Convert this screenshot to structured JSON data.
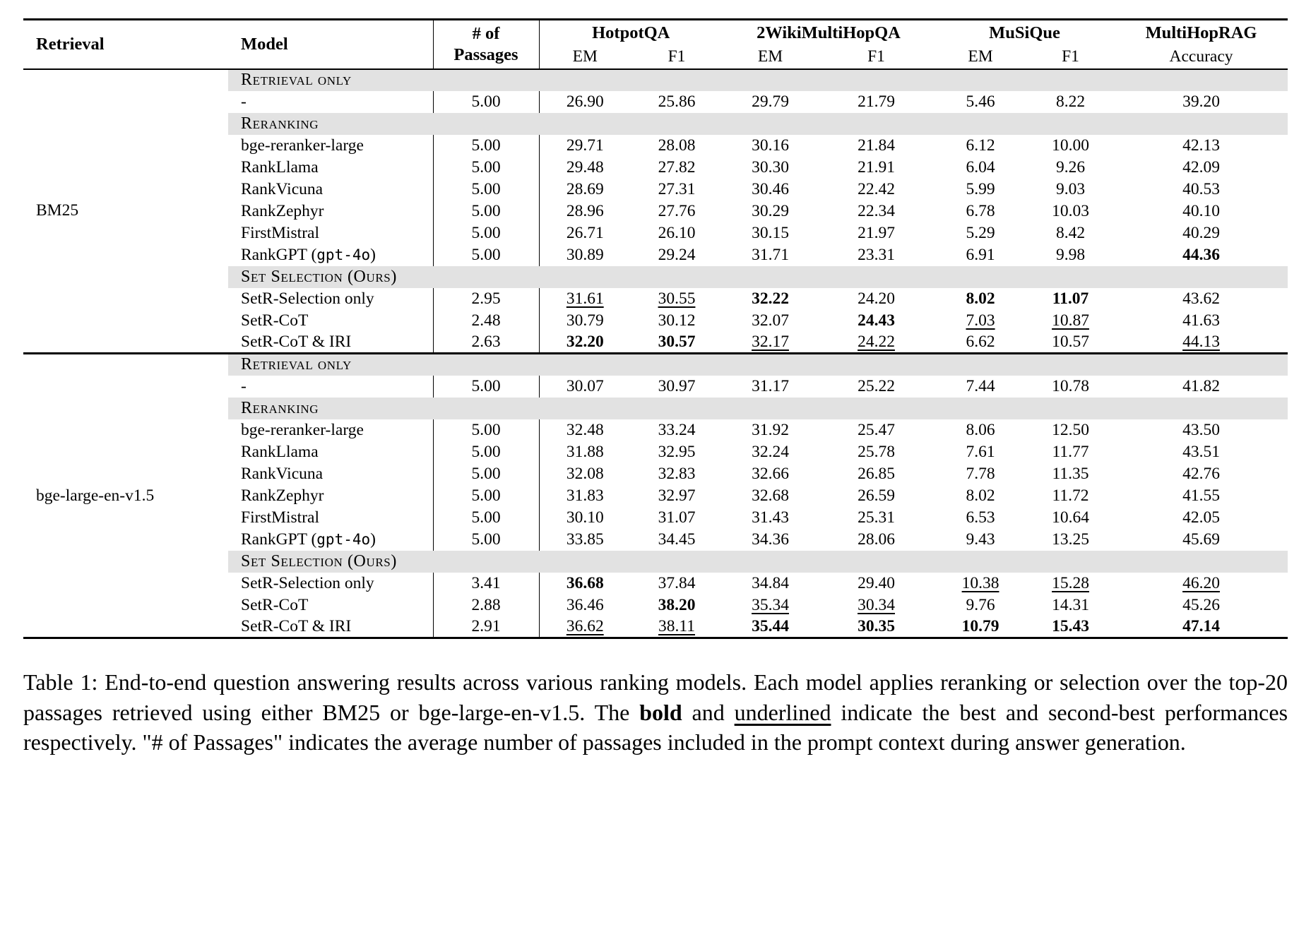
{
  "colors": {
    "section_header_bg": "#e2e2e2",
    "rule": "#000000",
    "text": "#000000"
  },
  "table": {
    "headers": {
      "retrieval": "Retrieval",
      "model": "Model",
      "passages_line1": "# of",
      "passages_line2": "Passages",
      "datasets": [
        {
          "name": "HotpotQA",
          "metrics": [
            "EM",
            "F1"
          ]
        },
        {
          "name": "2WikiMultiHopQA",
          "metrics": [
            "EM",
            "F1"
          ]
        },
        {
          "name": "MuSiQue",
          "metrics": [
            "EM",
            "F1"
          ]
        },
        {
          "name": "MultiHopRAG",
          "metrics": [
            "Accuracy"
          ]
        }
      ]
    },
    "groups": [
      {
        "retrieval": "BM25",
        "sections": [
          {
            "header": "Retrieval only",
            "rows": [
              {
                "model": [
                  {
                    "t": "-"
                  }
                ],
                "passages": "5.00",
                "values": [
                  {
                    "t": "26.90"
                  },
                  {
                    "t": "25.86"
                  },
                  {
                    "t": "29.79"
                  },
                  {
                    "t": "21.79"
                  },
                  {
                    "t": "5.46"
                  },
                  {
                    "t": "8.22"
                  },
                  {
                    "t": "39.20"
                  }
                ]
              }
            ]
          },
          {
            "header": "Reranking",
            "rows": [
              {
                "model": [
                  {
                    "t": "bge-reranker-large"
                  }
                ],
                "passages": "5.00",
                "values": [
                  {
                    "t": "29.71"
                  },
                  {
                    "t": "28.08"
                  },
                  {
                    "t": "30.16"
                  },
                  {
                    "t": "21.84"
                  },
                  {
                    "t": "6.12"
                  },
                  {
                    "t": "10.00"
                  },
                  {
                    "t": "42.13"
                  }
                ]
              },
              {
                "model": [
                  {
                    "t": "RankLlama"
                  }
                ],
                "passages": "5.00",
                "values": [
                  {
                    "t": "29.48"
                  },
                  {
                    "t": "27.82"
                  },
                  {
                    "t": "30.30"
                  },
                  {
                    "t": "21.91"
                  },
                  {
                    "t": "6.04"
                  },
                  {
                    "t": "9.26"
                  },
                  {
                    "t": "42.09"
                  }
                ]
              },
              {
                "model": [
                  {
                    "t": "RankVicuna"
                  }
                ],
                "passages": "5.00",
                "values": [
                  {
                    "t": "28.69"
                  },
                  {
                    "t": "27.31"
                  },
                  {
                    "t": "30.46"
                  },
                  {
                    "t": "22.42"
                  },
                  {
                    "t": "5.99"
                  },
                  {
                    "t": "9.03"
                  },
                  {
                    "t": "40.53"
                  }
                ]
              },
              {
                "model": [
                  {
                    "t": "RankZephyr"
                  }
                ],
                "passages": "5.00",
                "values": [
                  {
                    "t": "28.96"
                  },
                  {
                    "t": "27.76"
                  },
                  {
                    "t": "30.29"
                  },
                  {
                    "t": "22.34"
                  },
                  {
                    "t": "6.78"
                  },
                  {
                    "t": "10.03"
                  },
                  {
                    "t": "40.10"
                  }
                ]
              },
              {
                "model": [
                  {
                    "t": "FirstMistral"
                  }
                ],
                "passages": "5.00",
                "values": [
                  {
                    "t": "26.71"
                  },
                  {
                    "t": "26.10"
                  },
                  {
                    "t": "30.15"
                  },
                  {
                    "t": "21.97"
                  },
                  {
                    "t": "5.29"
                  },
                  {
                    "t": "8.42"
                  },
                  {
                    "t": "40.29"
                  }
                ]
              },
              {
                "model": [
                  {
                    "t": "RankGPT ("
                  },
                  {
                    "t": "gpt-4o",
                    "mono": true
                  },
                  {
                    "t": ")"
                  }
                ],
                "passages": "5.00",
                "values": [
                  {
                    "t": "30.89"
                  },
                  {
                    "t": "29.24"
                  },
                  {
                    "t": "31.71"
                  },
                  {
                    "t": "23.31"
                  },
                  {
                    "t": "6.91"
                  },
                  {
                    "t": "9.98"
                  },
                  {
                    "t": "44.36",
                    "f": "b"
                  }
                ]
              }
            ]
          },
          {
            "header": "Set Selection (Ours)",
            "rows": [
              {
                "model": [
                  {
                    "t": "SetR-Selection only"
                  }
                ],
                "passages": "2.95",
                "values": [
                  {
                    "t": "31.61",
                    "f": "u"
                  },
                  {
                    "t": "30.55",
                    "f": "u"
                  },
                  {
                    "t": "32.22",
                    "f": "b"
                  },
                  {
                    "t": "24.20"
                  },
                  {
                    "t": "8.02",
                    "f": "b"
                  },
                  {
                    "t": "11.07",
                    "f": "b"
                  },
                  {
                    "t": "43.62"
                  }
                ]
              },
              {
                "model": [
                  {
                    "t": "SetR-CoT"
                  }
                ],
                "passages": "2.48",
                "values": [
                  {
                    "t": "30.79"
                  },
                  {
                    "t": "30.12"
                  },
                  {
                    "t": "32.07"
                  },
                  {
                    "t": "24.43",
                    "f": "b"
                  },
                  {
                    "t": "7.03",
                    "f": "u"
                  },
                  {
                    "t": "10.87",
                    "f": "u"
                  },
                  {
                    "t": "41.63"
                  }
                ]
              },
              {
                "model": [
                  {
                    "t": "SetR-CoT & IRI"
                  }
                ],
                "passages": "2.63",
                "values": [
                  {
                    "t": "32.20",
                    "f": "b"
                  },
                  {
                    "t": "30.57",
                    "f": "b"
                  },
                  {
                    "t": "32.17",
                    "f": "u"
                  },
                  {
                    "t": "24.22",
                    "f": "u"
                  },
                  {
                    "t": "6.62"
                  },
                  {
                    "t": "10.57"
                  },
                  {
                    "t": "44.13",
                    "f": "u"
                  }
                ]
              }
            ]
          }
        ]
      },
      {
        "retrieval": "bge-large-en-v1.5",
        "sections": [
          {
            "header": "Retrieval only",
            "rows": [
              {
                "model": [
                  {
                    "t": "-"
                  }
                ],
                "passages": "5.00",
                "values": [
                  {
                    "t": "30.07"
                  },
                  {
                    "t": "30.97"
                  },
                  {
                    "t": "31.17"
                  },
                  {
                    "t": "25.22"
                  },
                  {
                    "t": "7.44"
                  },
                  {
                    "t": "10.78"
                  },
                  {
                    "t": "41.82"
                  }
                ]
              }
            ]
          },
          {
            "header": "Reranking",
            "rows": [
              {
                "model": [
                  {
                    "t": "bge-reranker-large"
                  }
                ],
                "passages": "5.00",
                "values": [
                  {
                    "t": "32.48"
                  },
                  {
                    "t": "33.24"
                  },
                  {
                    "t": "31.92"
                  },
                  {
                    "t": "25.47"
                  },
                  {
                    "t": "8.06"
                  },
                  {
                    "t": "12.50"
                  },
                  {
                    "t": "43.50"
                  }
                ]
              },
              {
                "model": [
                  {
                    "t": "RankLlama"
                  }
                ],
                "passages": "5.00",
                "values": [
                  {
                    "t": "31.88"
                  },
                  {
                    "t": "32.95"
                  },
                  {
                    "t": "32.24"
                  },
                  {
                    "t": "25.78"
                  },
                  {
                    "t": "7.61"
                  },
                  {
                    "t": "11.77"
                  },
                  {
                    "t": "43.51"
                  }
                ]
              },
              {
                "model": [
                  {
                    "t": "RankVicuna"
                  }
                ],
                "passages": "5.00",
                "values": [
                  {
                    "t": "32.08"
                  },
                  {
                    "t": "32.83"
                  },
                  {
                    "t": "32.66"
                  },
                  {
                    "t": "26.85"
                  },
                  {
                    "t": "7.78"
                  },
                  {
                    "t": "11.35"
                  },
                  {
                    "t": "42.76"
                  }
                ]
              },
              {
                "model": [
                  {
                    "t": "RankZephyr"
                  }
                ],
                "passages": "5.00",
                "values": [
                  {
                    "t": "31.83"
                  },
                  {
                    "t": "32.97"
                  },
                  {
                    "t": "32.68"
                  },
                  {
                    "t": "26.59"
                  },
                  {
                    "t": "8.02"
                  },
                  {
                    "t": "11.72"
                  },
                  {
                    "t": "41.55"
                  }
                ]
              },
              {
                "model": [
                  {
                    "t": "FirstMistral"
                  }
                ],
                "passages": "5.00",
                "values": [
                  {
                    "t": "30.10"
                  },
                  {
                    "t": "31.07"
                  },
                  {
                    "t": "31.43"
                  },
                  {
                    "t": "25.31"
                  },
                  {
                    "t": "6.53"
                  },
                  {
                    "t": "10.64"
                  },
                  {
                    "t": "42.05"
                  }
                ]
              },
              {
                "model": [
                  {
                    "t": "RankGPT ("
                  },
                  {
                    "t": "gpt-4o",
                    "mono": true
                  },
                  {
                    "t": ")"
                  }
                ],
                "passages": "5.00",
                "values": [
                  {
                    "t": "33.85"
                  },
                  {
                    "t": "34.45"
                  },
                  {
                    "t": "34.36"
                  },
                  {
                    "t": "28.06"
                  },
                  {
                    "t": "9.43"
                  },
                  {
                    "t": "13.25"
                  },
                  {
                    "t": "45.69"
                  }
                ]
              }
            ]
          },
          {
            "header": "Set Selection (Ours)",
            "rows": [
              {
                "model": [
                  {
                    "t": "SetR-Selection only"
                  }
                ],
                "passages": "3.41",
                "values": [
                  {
                    "t": "36.68",
                    "f": "b"
                  },
                  {
                    "t": "37.84"
                  },
                  {
                    "t": "34.84"
                  },
                  {
                    "t": "29.40"
                  },
                  {
                    "t": "10.38",
                    "f": "u"
                  },
                  {
                    "t": "15.28",
                    "f": "u"
                  },
                  {
                    "t": "46.20",
                    "f": "u"
                  }
                ]
              },
              {
                "model": [
                  {
                    "t": "SetR-CoT"
                  }
                ],
                "passages": "2.88",
                "values": [
                  {
                    "t": "36.46"
                  },
                  {
                    "t": "38.20",
                    "f": "b"
                  },
                  {
                    "t": "35.34",
                    "f": "u"
                  },
                  {
                    "t": "30.34",
                    "f": "u"
                  },
                  {
                    "t": "9.76"
                  },
                  {
                    "t": "14.31"
                  },
                  {
                    "t": "45.26"
                  }
                ]
              },
              {
                "model": [
                  {
                    "t": "SetR-CoT & IRI"
                  }
                ],
                "passages": "2.91",
                "values": [
                  {
                    "t": "36.62",
                    "f": "u"
                  },
                  {
                    "t": "38.11",
                    "f": "u"
                  },
                  {
                    "t": "35.44",
                    "f": "b"
                  },
                  {
                    "t": "30.35",
                    "f": "b"
                  },
                  {
                    "t": "10.79",
                    "f": "b"
                  },
                  {
                    "t": "15.43",
                    "f": "b"
                  },
                  {
                    "t": "47.14",
                    "f": "b"
                  }
                ]
              }
            ]
          }
        ]
      }
    ]
  },
  "caption": {
    "parts": [
      {
        "t": "Table 1: End-to-end question answering results across various ranking models. Each model applies reranking or selection over the top-20 passages retrieved using either BM25 or bge-large-en-v1.5. The "
      },
      {
        "t": "bold",
        "b": true
      },
      {
        "t": " and "
      },
      {
        "t": "underlined",
        "u": true
      },
      {
        "t": " indicate the best and second-best performances respectively. \"# of Passages\" indicates the average number of passages included in the prompt context during answer generation."
      }
    ]
  }
}
